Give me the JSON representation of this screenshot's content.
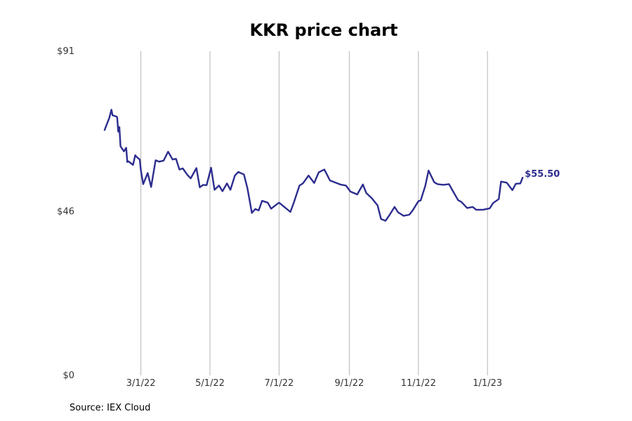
{
  "chart_data": {
    "type": "line",
    "title": "KKR price chart",
    "xlabel": "",
    "ylabel": "",
    "ylim": [
      0,
      91
    ],
    "xlim": [
      "2022-01-10",
      "2023-03-20"
    ],
    "y_ticks": [
      0,
      46,
      91
    ],
    "y_tick_labels": [
      "$0",
      "$46",
      "$91"
    ],
    "x_ticks": [
      "2022-03-01",
      "2022-05-01",
      "2022-07-01",
      "2022-09-01",
      "2022-11-01",
      "2023-01-01"
    ],
    "x_tick_labels": [
      "3/1/22",
      "5/1/22",
      "7/1/22",
      "9/1/22",
      "11/1/22",
      "1/1/23"
    ],
    "grid": "vertical",
    "color": "#2d2d8f",
    "last_value_label": "$55.50",
    "series": [
      {
        "x": [
          "2022-01-28",
          "2022-02-01",
          "2022-02-03",
          "2022-02-04",
          "2022-02-07",
          "2022-02-08",
          "2022-02-09",
          "2022-02-10",
          "2022-02-11",
          "2022-02-14",
          "2022-02-16",
          "2022-02-17",
          "2022-02-18",
          "2022-02-22",
          "2022-02-24",
          "2022-02-25",
          "2022-02-28",
          "2022-03-01",
          "2022-03-03",
          "2022-03-07",
          "2022-03-10",
          "2022-03-14",
          "2022-03-17",
          "2022-03-21",
          "2022-03-25",
          "2022-03-29",
          "2022-04-01",
          "2022-04-04",
          "2022-04-07",
          "2022-04-11",
          "2022-04-14",
          "2022-04-19",
          "2022-04-22",
          "2022-04-25",
          "2022-04-28",
          "2022-05-02",
          "2022-05-05",
          "2022-05-09",
          "2022-05-12",
          "2022-05-16",
          "2022-05-19",
          "2022-05-23",
          "2022-05-26",
          "2022-05-31",
          "2022-06-03",
          "2022-06-07",
          "2022-06-10",
          "2022-06-13",
          "2022-06-16",
          "2022-06-21",
          "2022-06-24",
          "2022-06-28",
          "2022-07-01",
          "2022-07-06",
          "2022-07-11",
          "2022-07-14",
          "2022-07-19",
          "2022-07-22",
          "2022-07-27",
          "2022-08-01",
          "2022-08-05",
          "2022-08-10",
          "2022-08-15",
          "2022-08-19",
          "2022-08-24",
          "2022-08-29",
          "2022-09-02",
          "2022-09-08",
          "2022-09-13",
          "2022-09-16",
          "2022-09-21",
          "2022-09-26",
          "2022-09-29",
          "2022-10-03",
          "2022-10-06",
          "2022-10-11",
          "2022-10-14",
          "2022-10-19",
          "2022-10-24",
          "2022-10-27",
          "2022-11-01",
          "2022-11-03",
          "2022-11-07",
          "2022-11-10",
          "2022-11-15",
          "2022-11-18",
          "2022-11-23",
          "2022-11-28",
          "2022-12-01",
          "2022-12-06",
          "2022-12-09",
          "2022-12-14",
          "2022-12-19",
          "2022-12-22",
          "2022-12-28",
          "2023-01-03",
          "2023-01-06",
          "2023-01-11",
          "2023-01-13",
          "2023-01-18",
          "2023-01-23",
          "2023-01-26",
          "2023-01-30",
          "2023-02-01"
        ],
        "y": [
          68.9,
          72.2,
          74.6,
          73.0,
          72.7,
          72.5,
          68.4,
          69.7,
          64.3,
          62.9,
          63.9,
          59.9,
          60.1,
          59.1,
          61.8,
          61.4,
          60.6,
          57.6,
          53.7,
          56.8,
          52.9,
          60.4,
          60.0,
          60.3,
          62.8,
          60.6,
          60.8,
          57.8,
          58.1,
          56.3,
          55.3,
          58.2,
          52.8,
          53.5,
          53.4,
          58.3,
          52.1,
          53.3,
          51.7,
          53.9,
          52.1,
          56.1,
          57.1,
          56.4,
          52.6,
          45.6,
          46.7,
          46.3,
          49.0,
          48.5,
          46.8,
          47.8,
          48.5,
          47.2,
          45.9,
          48.5,
          53.3,
          53.9,
          56.1,
          54.0,
          57.0,
          57.8,
          54.7,
          54.2,
          53.6,
          53.3,
          51.6,
          50.8,
          53.6,
          51.2,
          49.7,
          47.7,
          43.9,
          43.4,
          44.8,
          47.3,
          45.8,
          44.8,
          45.1,
          46.3,
          48.9,
          49.1,
          53.1,
          57.5,
          54.2,
          53.7,
          53.5,
          53.7,
          52.0,
          49.2,
          48.7,
          47.0,
          47.3,
          46.5,
          46.5,
          46.9,
          48.4,
          49.5,
          54.4,
          54.1,
          52.0,
          53.8,
          53.9,
          55.5
        ]
      }
    ]
  },
  "source_text": "Source: IEX Cloud"
}
